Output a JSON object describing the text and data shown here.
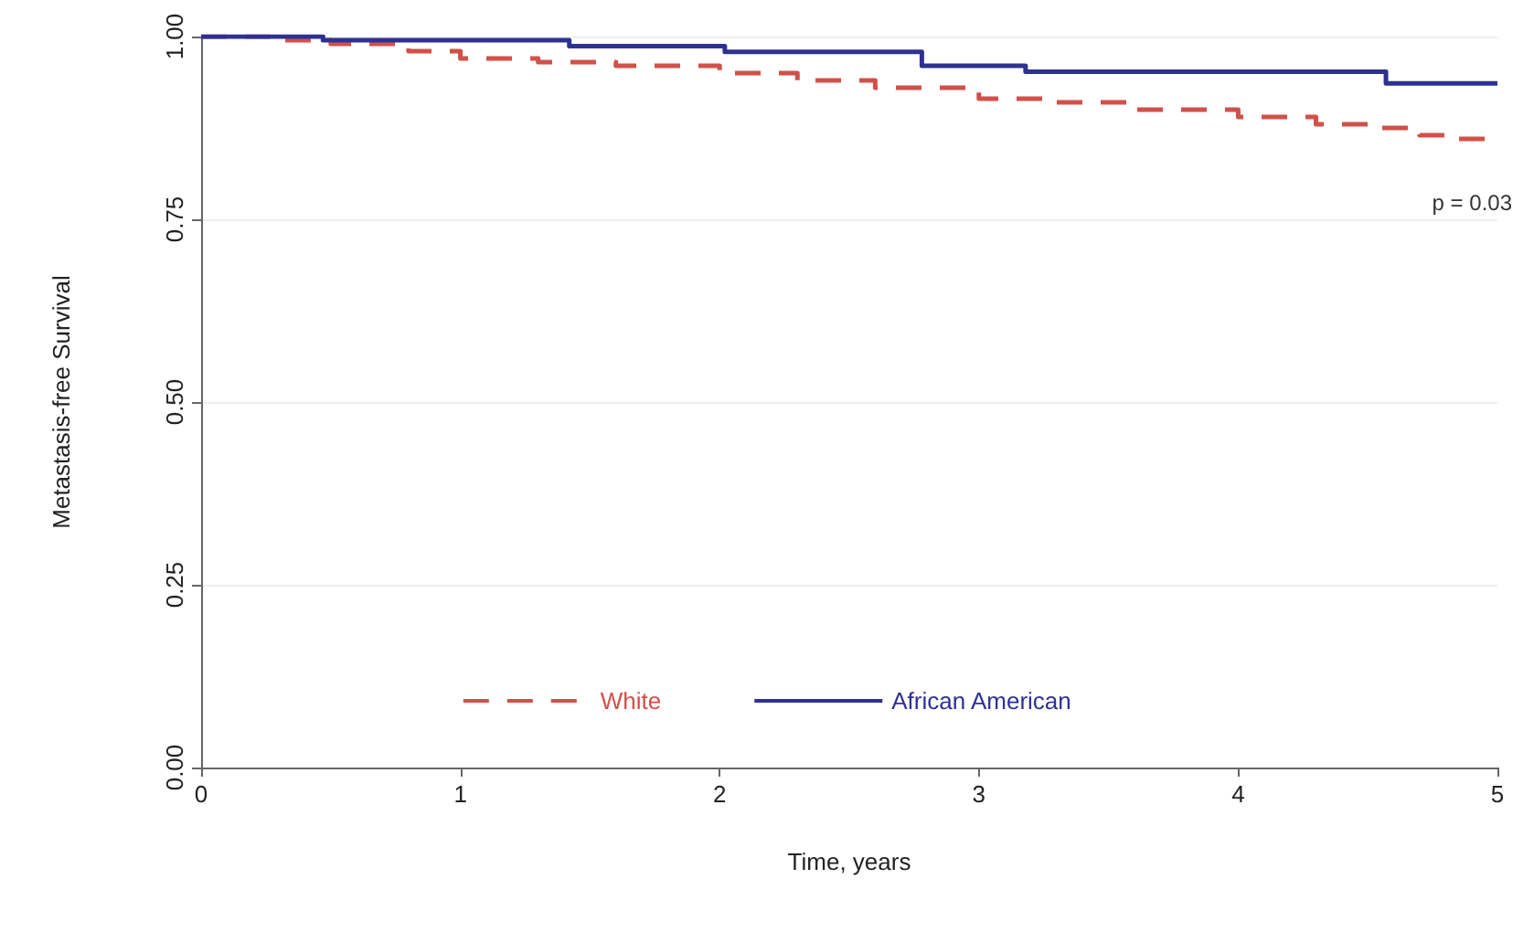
{
  "chart_data": {
    "type": "step",
    "xlabel": "Time, years",
    "ylabel": "Metastasis-free Survival",
    "xlim": [
      0,
      5
    ],
    "xticks": [
      0,
      1,
      2,
      3,
      4,
      5
    ],
    "ylim": [
      0,
      1
    ],
    "yticks": [
      {
        "value": 0,
        "label": "0.00"
      },
      {
        "value": 0.25,
        "label": "0.25"
      },
      {
        "value": 0.5,
        "label": "0.50"
      },
      {
        "value": 0.75,
        "label": "0.75"
      },
      {
        "value": 1,
        "label": "1.00"
      }
    ],
    "grid": "y",
    "legend": "bottom",
    "marker": "none",
    "annotations": [
      "p = 0.03"
    ],
    "series": [
      {
        "name": "White",
        "color": "#d2504a",
        "line_style": "dashed",
        "x": [
          0,
          0.3,
          0.5,
          0.8,
          1,
          1.3,
          1.6,
          2,
          2.3,
          2.6,
          3,
          3.3,
          3.6,
          4,
          4.3,
          4.5,
          4.7,
          4.85,
          5
        ],
        "values": [
          1,
          0.995,
          0.99,
          0.98,
          0.97,
          0.965,
          0.96,
          0.95,
          0.94,
          0.93,
          0.915,
          0.91,
          0.9,
          0.89,
          0.88,
          0.875,
          0.865,
          0.86,
          0.86
        ]
      },
      {
        "name": "African American",
        "color": "#2e3192",
        "line_style": "solid",
        "x": [
          0,
          0.47,
          1.42,
          2.02,
          2.78,
          3.18,
          4.57,
          5
        ],
        "values": [
          1,
          0.995,
          0.987,
          0.979,
          0.96,
          0.952,
          0.936,
          0.936
        ]
      }
    ]
  }
}
